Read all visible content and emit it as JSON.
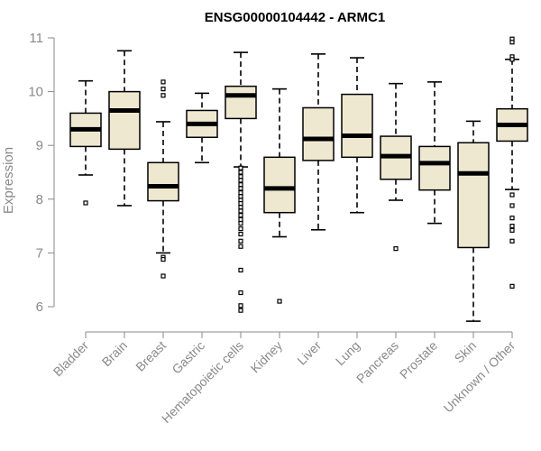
{
  "chart_data": {
    "type": "box",
    "title": "ENSG00000104442 - ARMC1",
    "ylabel": "Expression",
    "xlabel": "",
    "ylim": [
      5.7,
      11.05
    ],
    "yticks": [
      6,
      7,
      8,
      9,
      10,
      11
    ],
    "grid": false,
    "legend": "none",
    "box_fill": "#efe8d1",
    "categories": [
      "Bladder",
      "Brain",
      "Breast",
      "Gastric",
      "Hematopoietic cells",
      "Kidney",
      "Liver",
      "Lung",
      "Pancreas",
      "Prostate",
      "Skin",
      "Unknown / Other"
    ],
    "boxes": [
      {
        "min": 8.45,
        "q1": 8.98,
        "median": 9.3,
        "q3": 9.6,
        "max": 10.2,
        "outliers": [
          7.93
        ]
      },
      {
        "min": 7.88,
        "q1": 8.93,
        "median": 9.65,
        "q3": 10.0,
        "max": 10.76,
        "outliers": []
      },
      {
        "min": 7.0,
        "q1": 7.97,
        "median": 8.24,
        "q3": 8.68,
        "max": 9.44,
        "outliers": [
          10.18,
          10.05,
          9.93,
          6.92,
          6.88,
          6.57
        ]
      },
      {
        "min": 8.68,
        "q1": 9.15,
        "median": 9.4,
        "q3": 9.65,
        "max": 9.97,
        "outliers": []
      },
      {
        "min": 8.6,
        "q1": 9.5,
        "median": 9.93,
        "q3": 10.1,
        "max": 10.73,
        "outliers": [
          8.58,
          8.5,
          8.42,
          8.35,
          8.27,
          8.2,
          8.12,
          8.05,
          7.98,
          7.92,
          7.85,
          7.78,
          7.7,
          7.62,
          7.55,
          7.45,
          7.35,
          7.22,
          7.12,
          6.68,
          6.26,
          6.02,
          5.93
        ]
      },
      {
        "min": 7.3,
        "q1": 7.75,
        "median": 8.2,
        "q3": 8.78,
        "max": 10.05,
        "outliers": [
          6.1
        ]
      },
      {
        "min": 7.43,
        "q1": 8.72,
        "median": 9.12,
        "q3": 9.7,
        "max": 10.7,
        "outliers": []
      },
      {
        "min": 7.75,
        "q1": 8.78,
        "median": 9.18,
        "q3": 9.95,
        "max": 10.63,
        "outliers": []
      },
      {
        "min": 7.98,
        "q1": 8.37,
        "median": 8.8,
        "q3": 9.17,
        "max": 10.15,
        "outliers": [
          7.08
        ]
      },
      {
        "min": 7.55,
        "q1": 8.17,
        "median": 8.67,
        "q3": 8.98,
        "max": 10.18,
        "outliers": []
      },
      {
        "min": 5.73,
        "q1": 7.1,
        "median": 8.48,
        "q3": 9.05,
        "max": 9.45,
        "outliers": []
      },
      {
        "min": 8.18,
        "q1": 9.08,
        "median": 9.38,
        "q3": 9.68,
        "max": 10.6,
        "outliers": [
          10.98,
          10.92,
          10.65,
          10.6,
          8.08,
          7.88,
          7.65,
          7.5,
          7.42,
          7.22,
          6.38
        ]
      }
    ]
  }
}
